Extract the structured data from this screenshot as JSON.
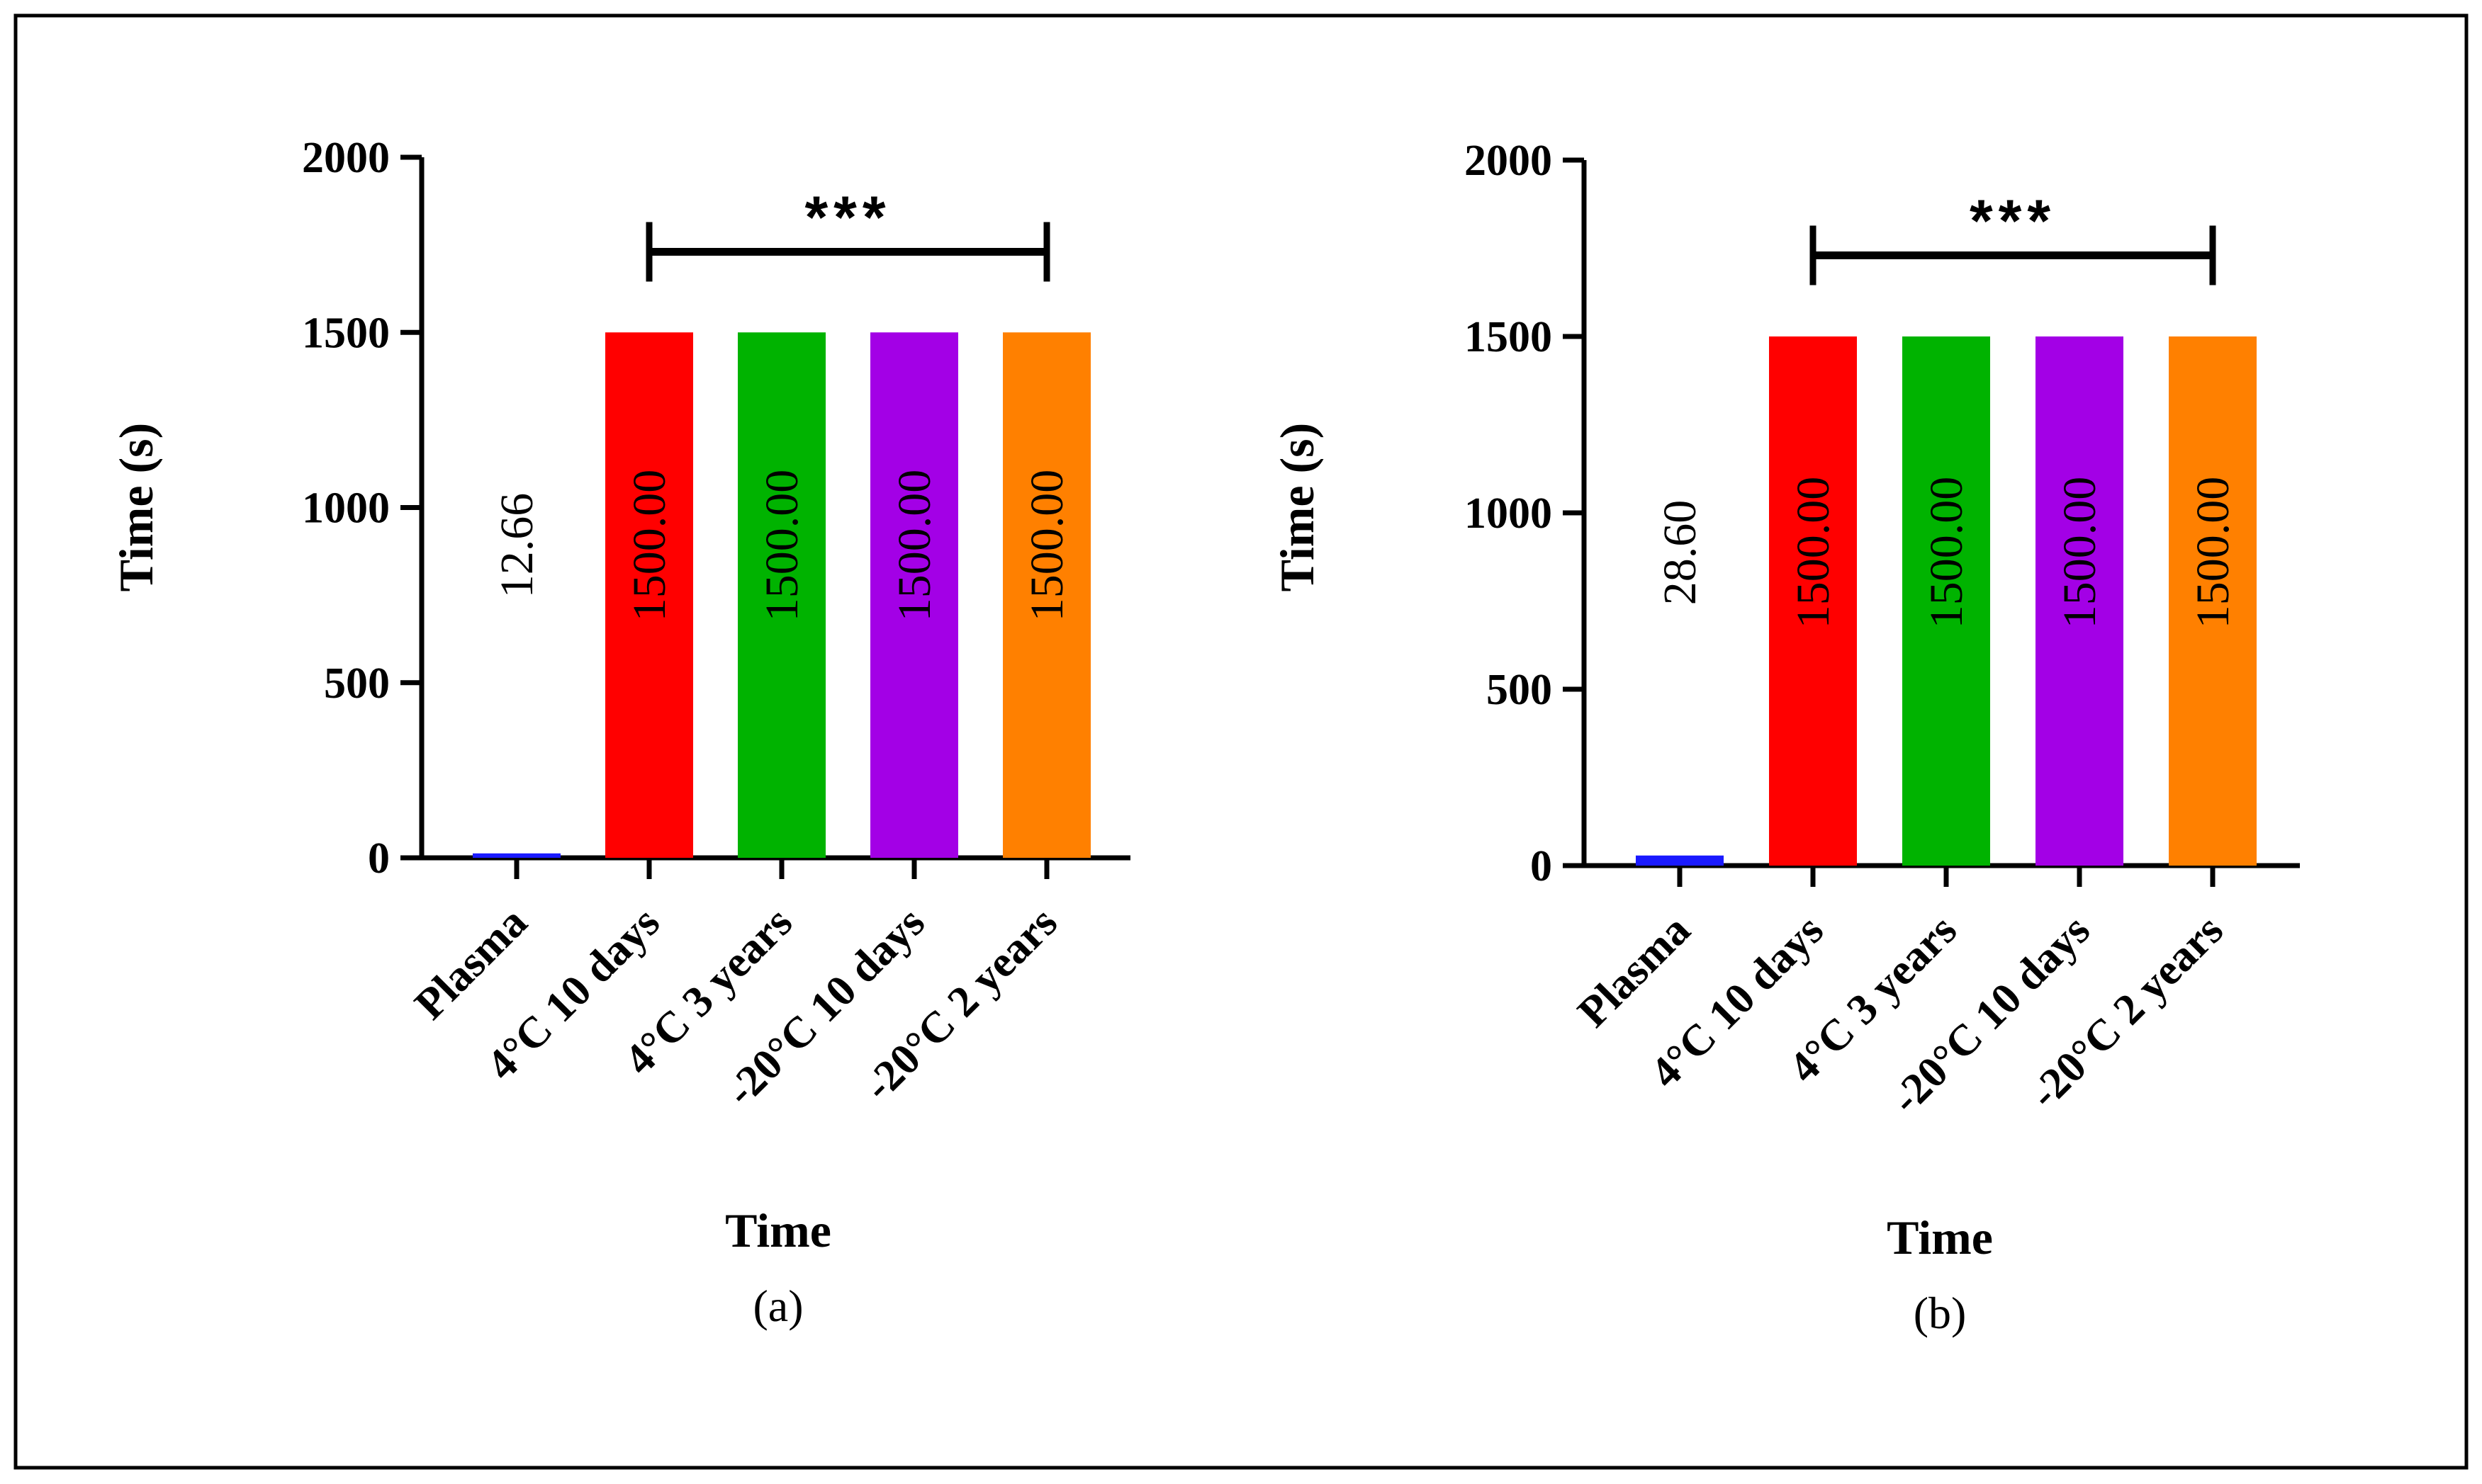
{
  "chart_data": [
    {
      "type": "bar",
      "panel_label": "(a)",
      "categories": [
        "Plasma",
        "4°C 10 days",
        "4°C 3 years",
        "-20°C 10 days",
        "-20°C 2 years"
      ],
      "values": [
        12.66,
        1500.0,
        1500.0,
        1500.0,
        1500.0
      ],
      "value_labels": [
        "12.66",
        "1500.00",
        "1500.00",
        "1500.00",
        "1500.00"
      ],
      "colors": [
        "#1a1aff",
        "#ff0000",
        "#00b300",
        "#a300e6",
        "#ff8000"
      ],
      "xlabel": "Time",
      "ylabel": "Time (s)",
      "ylim": [
        0,
        2000
      ],
      "yticks": [
        0,
        500,
        1000,
        1500,
        2000
      ],
      "yticks_labels": [
        "0",
        "500",
        "1000",
        "1500",
        "2000"
      ],
      "significance": {
        "from": 1,
        "to": 4,
        "label": "***",
        "y": 1730
      }
    },
    {
      "type": "bar",
      "panel_label": "(b)",
      "categories": [
        "Plasma",
        "4°C 10 days",
        "4°C 3 years",
        "-20°C 10 days",
        "-20°C 2 years"
      ],
      "values": [
        28.6,
        1500.0,
        1500.0,
        1500.0,
        1500.0
      ],
      "value_labels": [
        "28.60",
        "1500.00",
        "1500.00",
        "1500.00",
        "1500.00"
      ],
      "colors": [
        "#1a1aff",
        "#ff0000",
        "#00b300",
        "#a300e6",
        "#ff8000"
      ],
      "xlabel": "Time",
      "ylabel": "Time (s)",
      "ylim": [
        0,
        2000
      ],
      "yticks": [
        0,
        500,
        1000,
        1500,
        2000
      ],
      "yticks_labels": [
        "0",
        "500",
        "1000",
        "1500",
        "2000"
      ],
      "significance": {
        "from": 1,
        "to": 4,
        "label": "***",
        "y": 1730
      }
    }
  ]
}
